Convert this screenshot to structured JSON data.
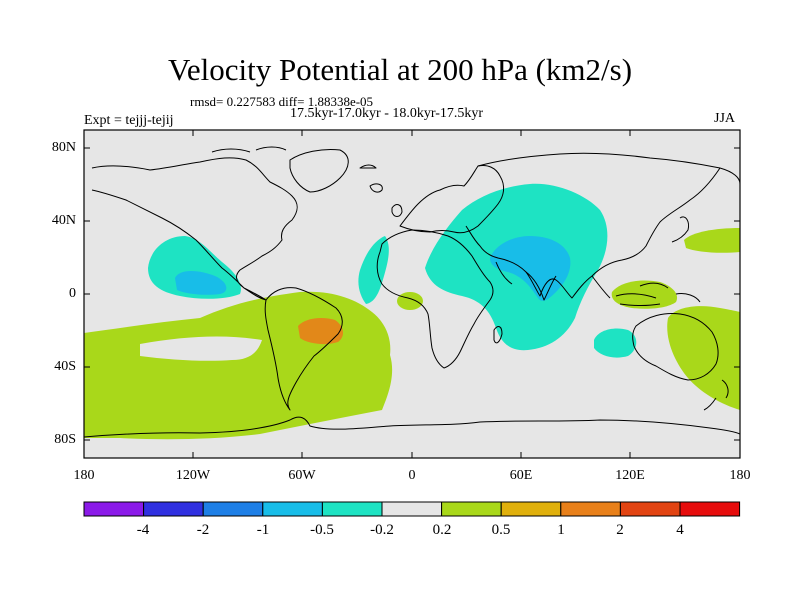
{
  "title": "Velocity Potential at 200 hPa (km2/s)",
  "stats": "rmsd= 0.227583 diff= 1.88338e-05",
  "subtitle": "17.5kyr-17.0kyr - 18.0kyr-17.5kyr",
  "experiment": "Expt = tejjj-tejij",
  "season": "JJA",
  "lat_labels": [
    "80N",
    "40N",
    "0",
    "40S",
    "80S"
  ],
  "lon_labels": [
    "180",
    "120W",
    "60W",
    "0",
    "60E",
    "120E",
    "180"
  ],
  "colorbar": {
    "colors": [
      "#8b1ae8",
      "#3030e0",
      "#1e7fe6",
      "#18bde8",
      "#1ee3c3",
      "#e6e6e6",
      "#a9d81a",
      "#e0b00c",
      "#e8801a",
      "#e24412",
      "#e60c0c"
    ],
    "labels": [
      "-4",
      "-2",
      "-1",
      "-0.5",
      "-0.2",
      "0.2",
      "0.5",
      "1",
      "2",
      "4"
    ]
  },
  "colors": {
    "background": "#e6e6e6",
    "teal": "#1ee3c3",
    "cyan": "#18bde8",
    "green": "#a9d81a",
    "orange": "#e8801a",
    "gold": "#e0b00c"
  }
}
